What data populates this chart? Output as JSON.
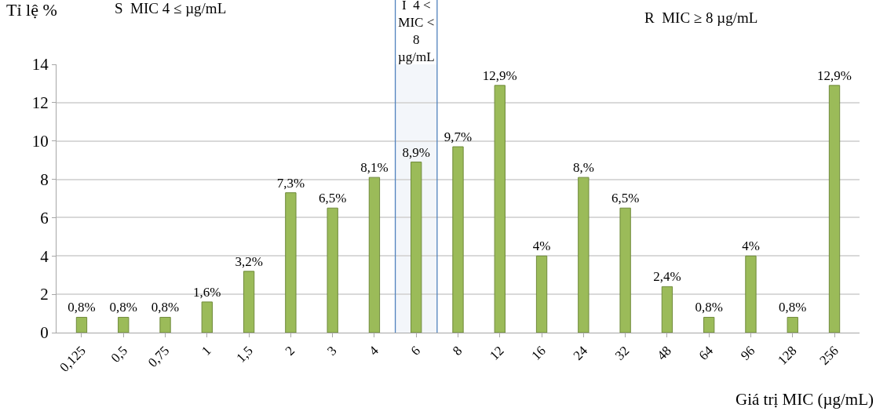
{
  "chart_data": {
    "type": "bar",
    "ylabel": "Tỉ lệ %",
    "xlabel": "Giá trị MIC (µg/mL)",
    "categories": [
      "0,125",
      "0,5",
      "0,75",
      "1",
      "1,5",
      "2",
      "3",
      "4",
      "6",
      "8",
      "12",
      "16",
      "24",
      "32",
      "48",
      "64",
      "96",
      "128",
      "256"
    ],
    "values": [
      0.8,
      0.8,
      0.8,
      1.6,
      3.2,
      7.3,
      6.5,
      8.1,
      8.9,
      9.7,
      12.9,
      4,
      8.1,
      6.5,
      2.4,
      0.8,
      4,
      0.8,
      12.9
    ],
    "value_labels": [
      "0,8%",
      "0,8%",
      "0,8%",
      "1,6%",
      "3,2%",
      "7,3%",
      "6,5%",
      "8,1%",
      "8,9%",
      "9,7%",
      "12,9%",
      "4%",
      "8,%",
      "6,5%",
      "2,4%",
      "0,8%",
      "4%",
      "0,8%",
      "12,9%"
    ],
    "color": "#9bbb59",
    "ylim": [
      0,
      14
    ],
    "yticks": [
      0,
      2,
      4,
      6,
      8,
      10,
      12,
      14
    ],
    "grid": "y",
    "bands": [
      {
        "axis": "x",
        "from": "4",
        "to": "8",
        "label": "I  4 <\nMIC <\n8\nµg/mL",
        "color": "#4f81bd"
      }
    ],
    "annotations": [
      "S  MIC 4 ≤ µg/mL",
      "R  MIC ≥ 8 µg/mL"
    ]
  }
}
